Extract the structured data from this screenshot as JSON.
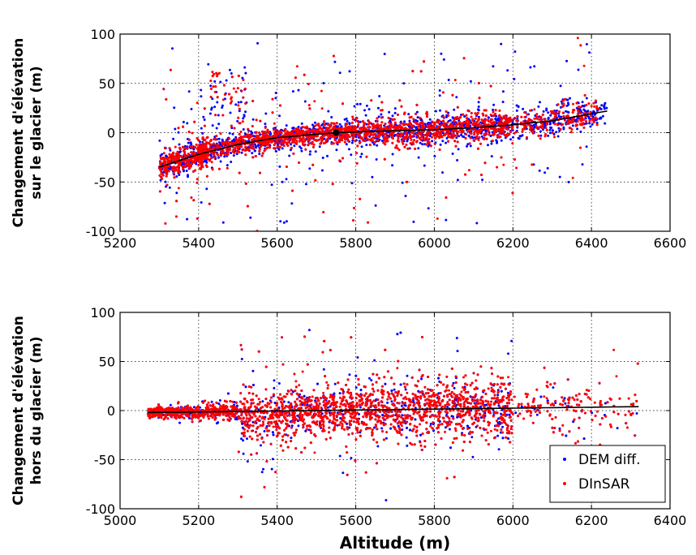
{
  "chart_data": [
    {
      "type": "scatter",
      "xlabel": "",
      "ylabel": "Changement d'élévation\nsur le glacier (m)",
      "xlim": [
        5200,
        6600
      ],
      "ylim": [
        -100,
        100
      ],
      "xticks": [
        5200,
        5400,
        5600,
        5800,
        6000,
        6200,
        6400,
        6600
      ],
      "yticks": [
        -100,
        -50,
        0,
        50,
        100
      ],
      "grid": true,
      "series": [
        {
          "name": "DEM diff.",
          "color": "#0000ff",
          "distribution": {
            "x_range": [
              5300,
              6440
            ],
            "trend": {
              "x": [
                5300,
                5400,
                5500,
                5600,
                5750,
                5900,
                6000,
                6100,
                6200,
                6300,
                6440
              ],
              "y": [
                -35,
                -22,
                -12,
                -5,
                0,
                2,
                3,
                5,
                8,
                12,
                22
              ]
            }
          }
        },
        {
          "name": "DInSAR",
          "color": "#ff0000",
          "distribution": {
            "x_range": [
              5300,
              6420
            ],
            "trend": {
              "x": [
                5300,
                5400,
                5500,
                5600,
                5750,
                5900,
                6000,
                6100,
                6200,
                6300,
                6440
              ],
              "y": [
                -35,
                -22,
                -12,
                -5,
                0,
                2,
                3,
                5,
                8,
                12,
                22
              ]
            }
          }
        }
      ],
      "fit_line": {
        "x": [
          5300,
          5400,
          5500,
          5600,
          5750,
          5900,
          6000,
          6100,
          6200,
          6300,
          6440
        ],
        "y": [
          -35,
          -22,
          -12,
          -5,
          0,
          2,
          3,
          5,
          8,
          12,
          22
        ],
        "color": "#000000"
      },
      "marker_point": {
        "x": 5750,
        "y": 0,
        "color": "#000000"
      }
    },
    {
      "type": "scatter",
      "xlabel": "Altitude (m)",
      "ylabel": "Changement d'élévation\nhors du glacier (m)",
      "xlim": [
        5000,
        6400
      ],
      "ylim": [
        -100,
        100
      ],
      "xticks": [
        5000,
        5200,
        5400,
        5600,
        5800,
        6000,
        6200,
        6400
      ],
      "yticks": [
        -100,
        -50,
        0,
        50,
        100
      ],
      "grid": true,
      "legend": {
        "placement": "lower-right",
        "entries": [
          "DEM diff.",
          "DInSAR"
        ]
      },
      "series": [
        {
          "name": "DEM diff.",
          "color": "#0000ff",
          "distribution": {
            "x_range": [
              5070,
              6320
            ]
          }
        },
        {
          "name": "DInSAR",
          "color": "#ff0000",
          "distribution": {
            "x_range": [
              5070,
              6320
            ]
          }
        }
      ],
      "fit_line": {
        "x": [
          5070,
          6320
        ],
        "y": [
          -2,
          4
        ],
        "color": "#000000"
      }
    }
  ]
}
